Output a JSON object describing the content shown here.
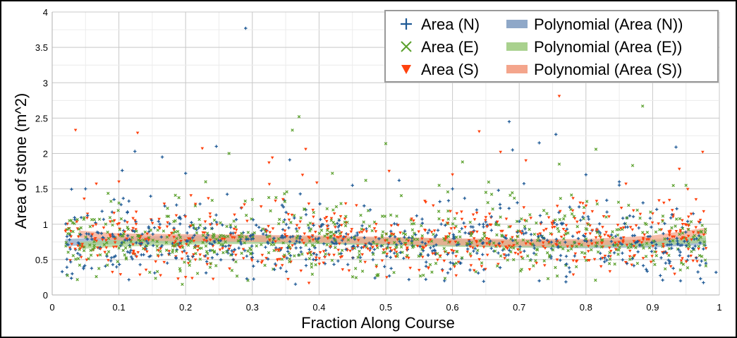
{
  "chart_data": {
    "type": "scatter",
    "title": "",
    "xlabel": "Fraction Along Course",
    "ylabel": "Area of stone (m^2)",
    "xlim": [
      0,
      1
    ],
    "ylim": [
      0,
      4
    ],
    "x_ticks": [
      "0",
      "0.1",
      "0.2",
      "0.3",
      "0.4",
      "0.5",
      "0.6",
      "0.7",
      "0.8",
      "0.9",
      "1"
    ],
    "y_ticks": [
      "0",
      "0.5",
      "1",
      "1.5",
      "2",
      "2.5",
      "3",
      "3.5",
      "4"
    ],
    "grid": true,
    "legend_position": "top-right",
    "series": [
      {
        "name": "Area (N)",
        "kind": "points",
        "marker": "plus",
        "color": "#1f5a96",
        "points": [
          [
            0.29,
            3.77
          ],
          [
            0.685,
            2.45
          ],
          [
            0.755,
            2.27
          ],
          [
            0.73,
            2.15
          ],
          [
            0.246,
            2.1
          ],
          [
            0.935,
            2.09
          ],
          [
            0.124,
            2.03
          ],
          [
            0.165,
            1.95
          ],
          [
            0.356,
            1.91
          ],
          [
            0.105,
            1.76
          ],
          [
            0.2,
            1.72
          ],
          [
            0.69,
            2.05
          ],
          [
            0.8,
            1.7
          ],
          [
            0.05,
            1.5
          ],
          [
            0.85,
            1.6
          ],
          [
            0.45,
            1.55
          ],
          [
            0.52,
            1.62
          ],
          [
            0.6,
            1.5
          ],
          [
            0.015,
            0.33
          ],
          [
            0.03,
            0.3
          ],
          [
            0.995,
            0.32
          ],
          [
            0.73,
            0.2
          ],
          [
            0.56,
            0.22
          ],
          [
            0.915,
            0.21
          ]
        ]
      },
      {
        "name": "Area (E)",
        "kind": "points",
        "marker": "x",
        "color": "#5aa02c",
        "points": [
          [
            0.37,
            2.52
          ],
          [
            0.885,
            2.67
          ],
          [
            0.36,
            2.33
          ],
          [
            0.5,
            2.14
          ],
          [
            0.265,
            2.0
          ],
          [
            0.815,
            2.06
          ],
          [
            0.42,
            1.72
          ],
          [
            0.615,
            1.88
          ],
          [
            0.76,
            1.85
          ],
          [
            0.87,
            1.83
          ],
          [
            0.195,
            0.15
          ],
          [
            0.1,
            1.3
          ],
          [
            0.95,
            1.55
          ],
          [
            0.23,
            1.6
          ],
          [
            0.65,
            1.45
          ],
          [
            0.3,
            1.35
          ],
          [
            0.58,
            1.55
          ],
          [
            0.47,
            1.62
          ]
        ]
      },
      {
        "name": "Area (S)",
        "kind": "points",
        "marker": "triangle",
        "color": "#ff420e",
        "points": [
          [
            0.035,
            2.33
          ],
          [
            0.128,
            2.29
          ],
          [
            0.76,
            2.81
          ],
          [
            0.38,
            2.06
          ],
          [
            0.64,
            2.31
          ],
          [
            0.225,
            2.07
          ],
          [
            0.33,
            1.94
          ],
          [
            0.975,
            2.02
          ],
          [
            0.672,
            2.02
          ],
          [
            0.71,
            1.9
          ],
          [
            0.94,
            1.78
          ],
          [
            0.1,
            1.6
          ],
          [
            0.325,
            1.87
          ],
          [
            0.505,
            1.75
          ],
          [
            0.6,
            1.7
          ],
          [
            0.86,
            1.57
          ],
          [
            0.965,
            1.35
          ],
          [
            0.02,
            0.9
          ],
          [
            0.55,
            0.35
          ],
          [
            0.2,
            0.25
          ]
        ]
      },
      {
        "name": "Polynomial (Area (N))",
        "kind": "curve",
        "color": "#8fa8c8",
        "points": [
          [
            0.02,
            0.74
          ],
          [
            0.1,
            0.77
          ],
          [
            0.2,
            0.79
          ],
          [
            0.3,
            0.79
          ],
          [
            0.4,
            0.77
          ],
          [
            0.5,
            0.76
          ],
          [
            0.6,
            0.74
          ],
          [
            0.7,
            0.72
          ],
          [
            0.8,
            0.71
          ],
          [
            0.9,
            0.72
          ],
          [
            0.98,
            0.76
          ]
        ]
      },
      {
        "name": "Polynomial (Area (E))",
        "kind": "curve",
        "color": "#a9d18e",
        "points": [
          [
            0.04,
            0.7
          ],
          [
            0.1,
            0.73
          ],
          [
            0.2,
            0.76
          ],
          [
            0.3,
            0.77
          ],
          [
            0.4,
            0.77
          ],
          [
            0.5,
            0.75
          ],
          [
            0.6,
            0.73
          ],
          [
            0.7,
            0.72
          ],
          [
            0.8,
            0.72
          ],
          [
            0.9,
            0.74
          ],
          [
            0.98,
            0.79
          ]
        ]
      },
      {
        "name": "Polynomial (Area (S))",
        "kind": "curve",
        "color": "#f4a58c",
        "points": [
          [
            0.04,
            0.86
          ],
          [
            0.1,
            0.82
          ],
          [
            0.2,
            0.81
          ],
          [
            0.3,
            0.8
          ],
          [
            0.4,
            0.79
          ],
          [
            0.5,
            0.77
          ],
          [
            0.6,
            0.75
          ],
          [
            0.7,
            0.74
          ],
          [
            0.8,
            0.74
          ],
          [
            0.9,
            0.79
          ],
          [
            0.98,
            0.9
          ]
        ]
      }
    ],
    "dense_band": {
      "x_range": [
        0.02,
        0.98
      ],
      "y_core": [
        0.3,
        1.4
      ],
      "approx_points_per_series": 650
    }
  }
}
